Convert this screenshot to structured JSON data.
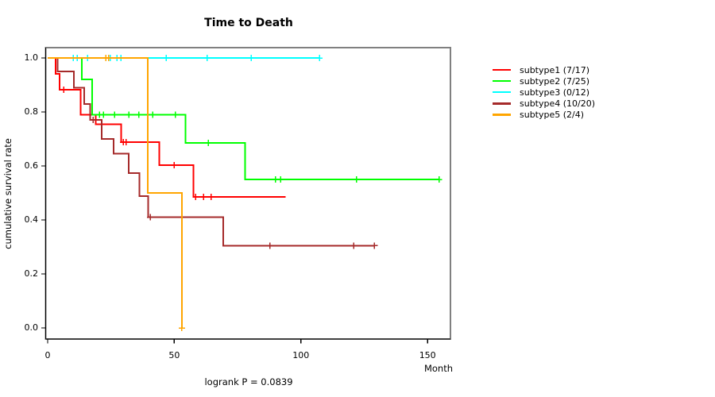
{
  "title": "Time to Death",
  "footer": "logrank P = 0.0839",
  "chart_data": {
    "type": "line",
    "subtype": "kaplan-meier-step",
    "title": "Time to Death",
    "xlabel": "Month",
    "ylabel": "cumulative survival rate",
    "xlim": [
      0,
      160
    ],
    "ylim": [
      0.0,
      1.0
    ],
    "x_ticks": [
      0,
      50,
      100,
      150
    ],
    "y_ticks": [
      0.0,
      0.2,
      0.4,
      0.6,
      0.8,
      1.0
    ],
    "grid": false,
    "legend_position": "right-outside",
    "annotation": "logrank P = 0.0839",
    "box_color": "#808080",
    "axis_color": "#000000",
    "series": [
      {
        "name": "subtype1",
        "label": "subtype1 (7/17)",
        "color": "#FF0000",
        "start": [
          0,
          1.0
        ],
        "steps": [
          [
            3.2,
            0.941
          ],
          [
            4.7,
            0.882
          ],
          [
            13,
            0.79
          ],
          [
            19,
            0.755
          ],
          [
            29,
            0.688
          ],
          [
            44,
            0.603
          ],
          [
            57.5,
            0.485
          ]
        ],
        "end_month": 94,
        "censors": [
          [
            6.3,
            0.882
          ],
          [
            29.8,
            0.688
          ],
          [
            31,
            0.688
          ],
          [
            50,
            0.603
          ],
          [
            58.5,
            0.485
          ],
          [
            61.5,
            0.485
          ],
          [
            64.5,
            0.485
          ]
        ]
      },
      {
        "name": "subtype2",
        "label": "subtype2 (7/25)",
        "color": "#00FF00",
        "start": [
          0,
          1.0
        ],
        "steps": [
          [
            13.5,
            0.92
          ],
          [
            17.6,
            0.79
          ],
          [
            54.5,
            0.685
          ],
          [
            78,
            0.55
          ]
        ],
        "end_month": 154.5,
        "censors": [
          [
            20.5,
            0.79
          ],
          [
            22,
            0.79
          ],
          [
            26.5,
            0.79
          ],
          [
            32,
            0.79
          ],
          [
            36,
            0.79
          ],
          [
            41.5,
            0.79
          ],
          [
            50.5,
            0.79
          ],
          [
            63.5,
            0.685
          ],
          [
            90,
            0.55
          ],
          [
            92,
            0.55
          ],
          [
            122,
            0.55
          ],
          [
            154.5,
            0.55
          ]
        ]
      },
      {
        "name": "subtype3",
        "label": "subtype3 (0/12)",
        "color": "#00FFFF",
        "start": [
          0,
          1.0
        ],
        "steps": [],
        "end_month": 107.3,
        "censors": [
          [
            10.1,
            1.0
          ],
          [
            11.7,
            1.0
          ],
          [
            15.7,
            1.0
          ],
          [
            24.7,
            1.0
          ],
          [
            27.4,
            1.0
          ],
          [
            29,
            1.0
          ],
          [
            46.8,
            1.0
          ],
          [
            62.9,
            1.0
          ],
          [
            80.4,
            1.0
          ],
          [
            107.3,
            1.0
          ]
        ]
      },
      {
        "name": "subtype4",
        "label": "subtype4 (10/20)",
        "color": "#A52A2A",
        "start": [
          0,
          1.0
        ],
        "steps": [
          [
            3.9,
            0.95
          ],
          [
            10.3,
            0.89
          ],
          [
            14.4,
            0.83
          ],
          [
            16.8,
            0.77
          ],
          [
            21.4,
            0.7
          ],
          [
            26,
            0.645
          ],
          [
            32,
            0.573
          ],
          [
            36.3,
            0.488
          ],
          [
            39.7,
            0.41
          ],
          [
            69.4,
            0.305
          ]
        ],
        "end_month": 129,
        "censors": [
          [
            18,
            0.77
          ],
          [
            40.5,
            0.41
          ],
          [
            87.7,
            0.305
          ],
          [
            120.9,
            0.305
          ],
          [
            129,
            0.305
          ]
        ]
      },
      {
        "name": "subtype5",
        "label": "subtype5 (2/4)",
        "color": "#FFA500",
        "start": [
          0,
          1.0
        ],
        "steps": [
          [
            39.5,
            0.5
          ],
          [
            53,
            0.0
          ]
        ],
        "end_month": 53,
        "censors": [
          [
            23,
            1.0
          ],
          [
            24,
            1.0
          ],
          [
            53,
            0.0
          ]
        ]
      }
    ]
  }
}
